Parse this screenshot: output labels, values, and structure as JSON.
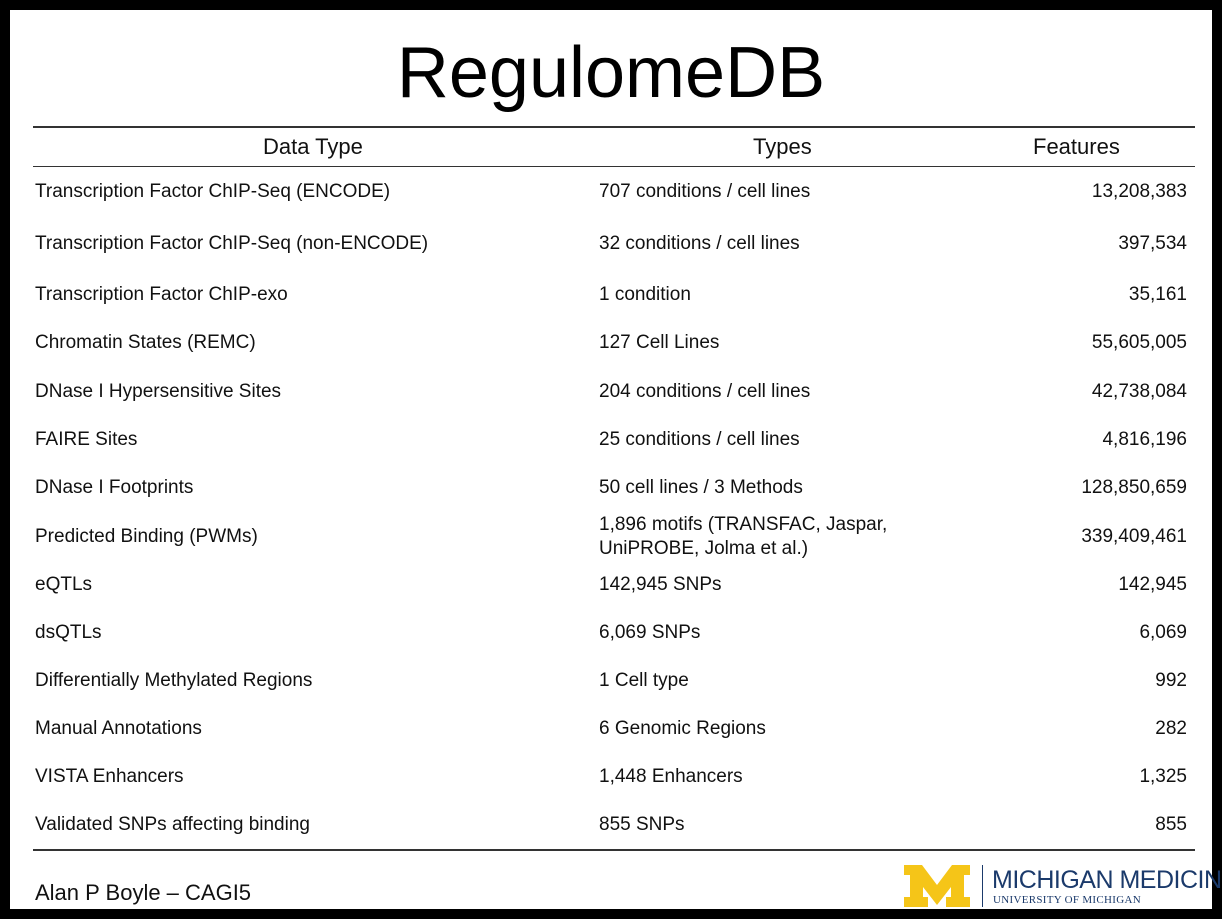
{
  "header": {
    "title": "RegulomeDB"
  },
  "table": {
    "columns": [
      "Data Type",
      "Types",
      "Features"
    ],
    "rows": [
      [
        "Transcription Factor ChIP-Seq (ENCODE)",
        "707 conditions / cell lines",
        "13,208,383"
      ],
      [
        "Transcription Factor ChIP-Seq (non-ENCODE)",
        "32 conditions / cell lines",
        "397,534"
      ],
      [
        "Transcription Factor ChIP-exo",
        "1 condition",
        "35,161"
      ],
      [
        "Chromatin States (REMC)",
        "127 Cell Lines",
        "55,605,005"
      ],
      [
        "DNase I Hypersensitive Sites",
        "204 conditions / cell lines",
        "42,738,084"
      ],
      [
        "FAIRE Sites",
        "25 conditions / cell lines",
        "4,816,196"
      ],
      [
        "DNase I Footprints",
        "50 cell lines / 3 Methods",
        "128,850,659"
      ],
      [
        "Predicted Binding (PWMs)",
        "1,896 motifs (TRANSFAC, Jaspar,\nUniPROBE, Jolma et al.)",
        "339,409,461"
      ],
      [
        "eQTLs",
        "142,945 SNPs",
        "142,945"
      ],
      [
        "dsQTLs",
        "6,069 SNPs",
        "6,069"
      ],
      [
        "Differentially Methylated Regions",
        "1 Cell type",
        "992"
      ],
      [
        "Manual Annotations",
        "6 Genomic Regions",
        "282"
      ],
      [
        "VISTA Enhancers",
        "1,448 Enhancers",
        "1,325"
      ],
      [
        "Validated SNPs affecting binding",
        "855 SNPs",
        "855"
      ]
    ]
  },
  "footer": {
    "text": "Alan P Boyle – CAGI5"
  },
  "logo": {
    "name": "MICHIGAN MEDICINE",
    "subtitle": "UNIVERSITY OF MICHIGAN"
  }
}
